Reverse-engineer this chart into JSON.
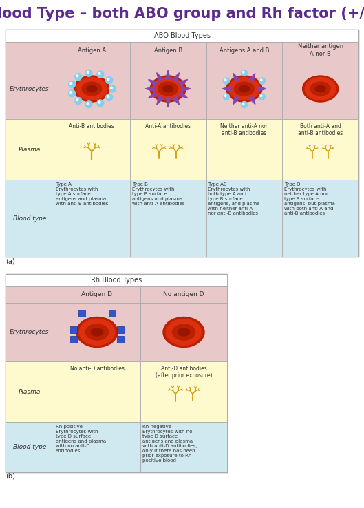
{
  "title": "Blood Type – both ABO group and Rh factor (+/-)",
  "title_color": "#5B2C8D",
  "title_fontsize": 15,
  "bg_color": "#FFFFFF",
  "table1_header": "ABO Blood Types",
  "table1_col_headers": [
    "Antigen A",
    "Antigen B",
    "Antigens A and B",
    "Neither antigen\nA nor B"
  ],
  "table1_row_labels": [
    "Erythrocytes",
    "Plasma",
    "Blood type"
  ],
  "table1_plasma_labels": [
    "Anti-B antibodies",
    "Anti-A antibodies",
    "Neither anti-A nor\nanti-B antibodies",
    "Both anti-A and\nanti-B antibodies"
  ],
  "table1_blood_type_text": [
    "Type A\nErythrocytes with\ntype A surface\nantigens and plasma\nwith anti-B antibodies",
    "Type B\nErythrocytes with\ntype B surface\nantigens and plasma\nwith anti-A antibodies",
    "Type AB\nErythrocytes with\nboth type A and\ntype B surface\nantigens, and plasma\nwith neither anti-A\nnor anti-B antibodies",
    "Type O\nErythrocytes with\nneither type A nor\ntype B surface\nantigens, but plasma\nwith both anti-A and\nanti-B antibodies"
  ],
  "table2_header": "Rh Blood Types",
  "table2_col_headers": [
    "Antigen D",
    "No antigen D"
  ],
  "table2_row_labels": [
    "Erythrocytes",
    "Plasma",
    "Blood type"
  ],
  "table2_plasma_labels": [
    "No anti-D antibodies",
    "Anti-D antibodies\n(after prior exposure)"
  ],
  "table2_blood_type_text": [
    "Rh positive\nErythrocytes with\ntype D surface\nantigens and plasma\nwith no anti-D\nantibodies",
    "Rh negative\nErythrocytes with no\ntype D surface\nantigens and plasma\nwith anti-D antibodies,\nonly if there has been\nprior exposure to Rh\npositive blood"
  ],
  "row_label_bg": "#E8C8C8",
  "plasma_row_bg": "#FFFACD",
  "blood_type_row_bg": "#D0E8F0",
  "header_bg": "#FFFFFF",
  "col_header_bg": "#E8C8C8",
  "grid_color": "#AAAAAA",
  "label_fontsize": 6.5,
  "cell_fontsize": 5.5,
  "antibody_color": "#D4A017",
  "rbc_outer": "#BB2000",
  "rbc_mid": "#DD3010",
  "rbc_inner": "#BB2000",
  "rbc_center": "#991500",
  "blue_ball": "#87CEEB",
  "spike_color": "#8844AA",
  "square_color": "#3355CC"
}
